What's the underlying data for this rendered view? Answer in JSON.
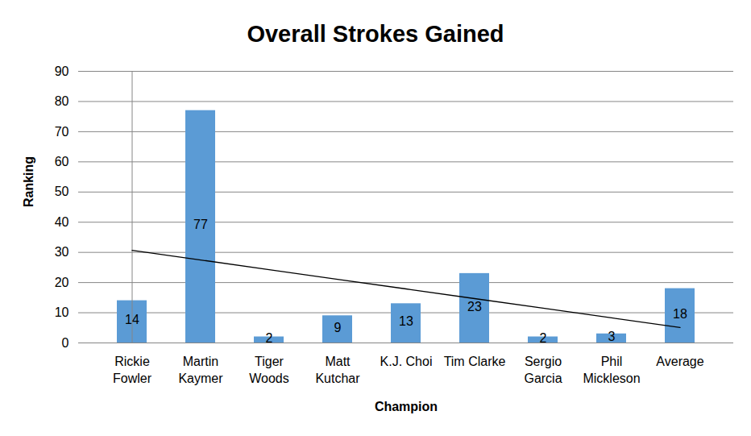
{
  "chart_data": {
    "type": "bar",
    "title": "Overall Strokes Gained",
    "x_label": "Champion",
    "y_label": "Ranking",
    "categories": [
      "Rickie Fowler",
      "Martin Kaymer",
      "Tiger Woods",
      "Matt Kutchar",
      "K.J. Choi",
      "Tim Clarke",
      "Sergio Garcia",
      "Phil Mickleson",
      "Average"
    ],
    "values": [
      14,
      77,
      2,
      9,
      13,
      23,
      2,
      3,
      18
    ],
    "color": "#5b9bd5",
    "ylim": [
      0,
      90
    ],
    "yticks": [
      0,
      10,
      20,
      30,
      40,
      50,
      60,
      70,
      80,
      90
    ],
    "grid": true,
    "data_labels": true
  }
}
